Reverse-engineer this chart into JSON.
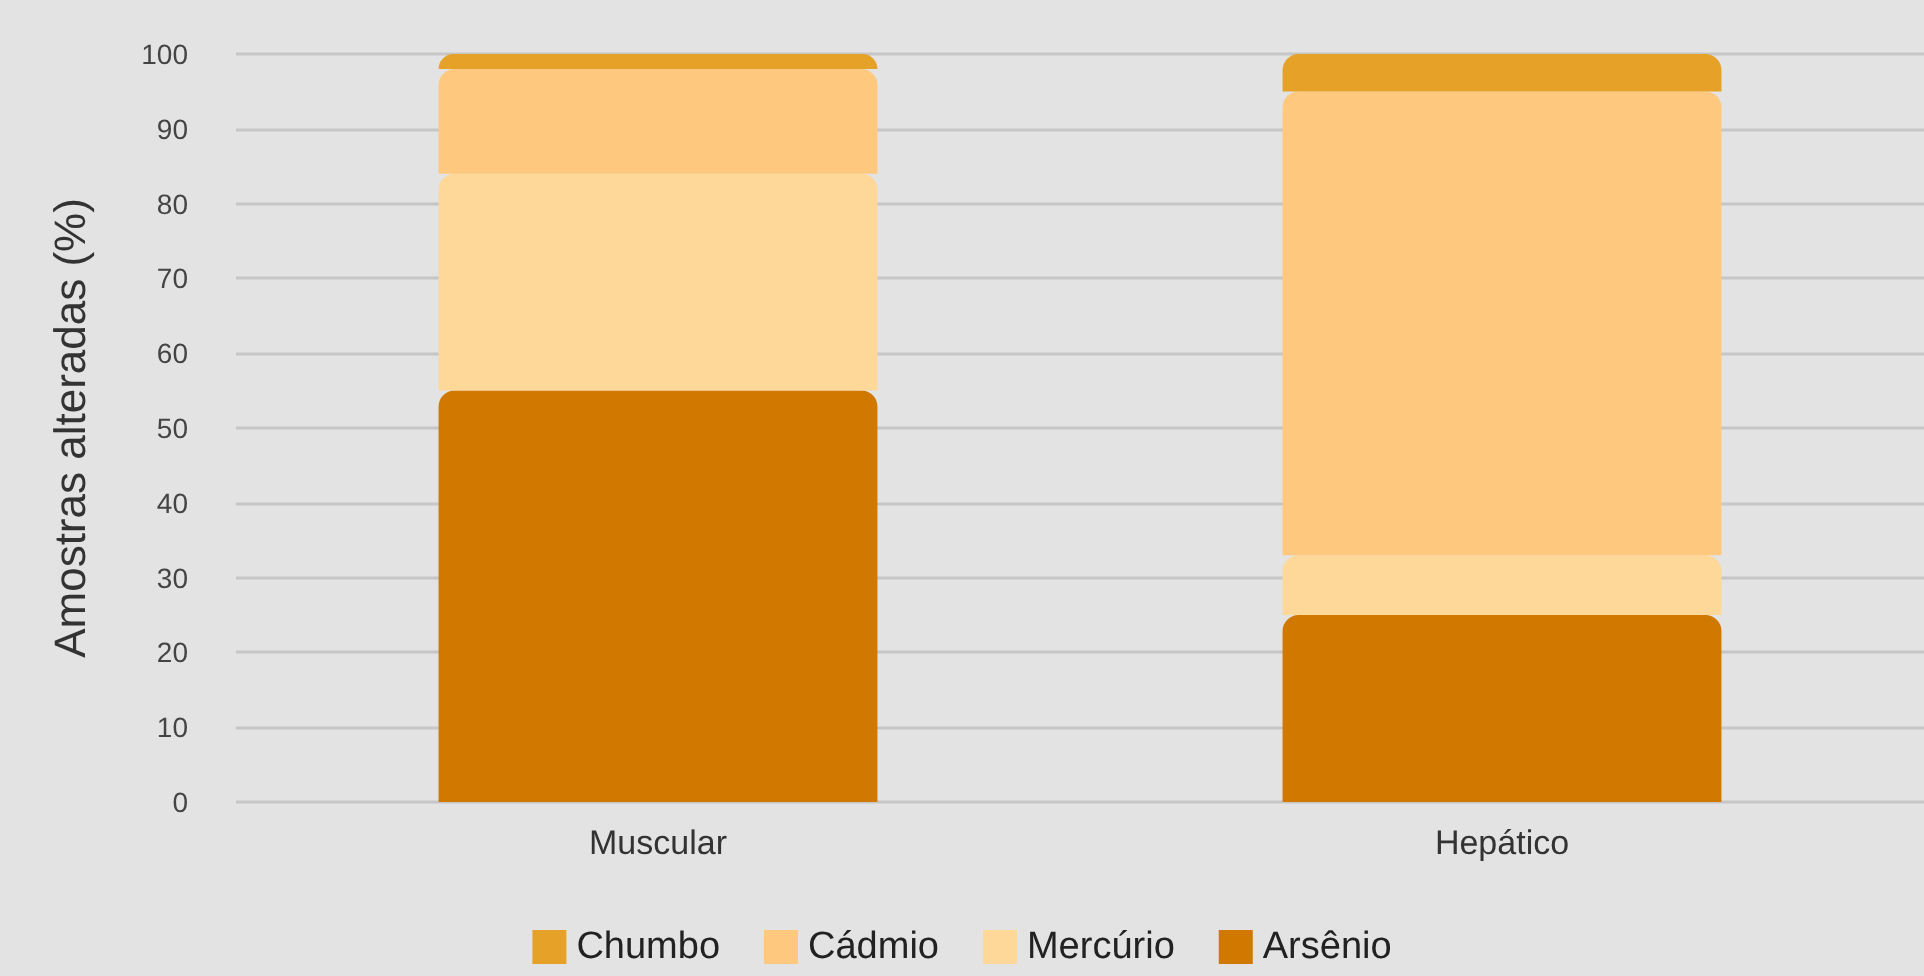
{
  "chart_data": {
    "type": "bar",
    "stacked": true,
    "ylabel": "Amostras alteradas (%)",
    "categories": [
      "Muscular",
      "Hepático"
    ],
    "series": [
      {
        "name": "Arsênio",
        "color": "#d17800",
        "values": [
          55,
          25
        ]
      },
      {
        "name": "Mercúrio",
        "color": "#fed899",
        "values": [
          29,
          8
        ]
      },
      {
        "name": "Cádmio",
        "color": "#fec97e",
        "values": [
          14,
          62
        ]
      },
      {
        "name": "Chumbo",
        "color": "#e6a228",
        "values": [
          2,
          5
        ]
      }
    ],
    "ylim": [
      0,
      100
    ],
    "yticks": [
      0,
      10,
      20,
      30,
      40,
      50,
      60,
      70,
      80,
      90,
      100
    ],
    "grid": "y",
    "legend": "bottom"
  }
}
